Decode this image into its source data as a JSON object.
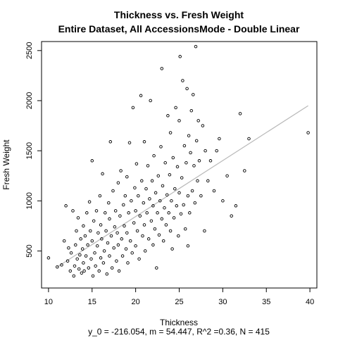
{
  "chart_data": {
    "type": "scatter",
    "title": "Thickness vs. Fresh Weight",
    "subtitle": "Entire Dataset, All AccessionsMode - Double Linear",
    "xlabel": "Thickness",
    "ylabel": "Fresh Weight",
    "footnote": "y_0 = -216.054, m = 54.447, R^2 =0.36, N = 415",
    "xlim": [
      9.2,
      40.8
    ],
    "ylim": [
      130,
      2590
    ],
    "x_ticks": [
      10,
      15,
      20,
      25,
      30,
      35,
      40
    ],
    "y_ticks": [
      500,
      1000,
      1500,
      2000,
      2500
    ],
    "grid": false,
    "fit_line": {
      "x": [
        11.0,
        39.8
      ],
      "y": [
        340,
        1950
      ],
      "color": "#b8b8b8"
    },
    "points": [
      [
        10.0,
        430
      ],
      [
        11.0,
        340
      ],
      [
        11.5,
        360
      ],
      [
        11.8,
        600
      ],
      [
        12.0,
        950
      ],
      [
        12.2,
        400
      ],
      [
        12.3,
        530
      ],
      [
        12.5,
        300
      ],
      [
        12.6,
        480
      ],
      [
        12.8,
        900
      ],
      [
        12.9,
        250
      ],
      [
        13.0,
        350
      ],
      [
        13.1,
        560
      ],
      [
        13.2,
        700
      ],
      [
        13.3,
        420
      ],
      [
        13.4,
        830
      ],
      [
        13.5,
        320
      ],
      [
        13.6,
        460
      ],
      [
        13.7,
        620
      ],
      [
        13.8,
        280
      ],
      [
        13.9,
        520
      ],
      [
        14.0,
        380
      ],
      [
        14.0,
        750
      ],
      [
        14.1,
        300
      ],
      [
        14.2,
        650
      ],
      [
        14.3,
        450
      ],
      [
        14.4,
        880
      ],
      [
        14.5,
        560
      ],
      [
        14.6,
        330
      ],
      [
        14.7,
        990
      ],
      [
        14.8,
        700
      ],
      [
        14.9,
        420
      ],
      [
        15.0,
        600
      ],
      [
        15.0,
        1400
      ],
      [
        15.1,
        250
      ],
      [
        15.2,
        800
      ],
      [
        15.3,
        480
      ],
      [
        15.4,
        350
      ],
      [
        15.5,
        900
      ],
      [
        15.6,
        550
      ],
      [
        15.7,
        680
      ],
      [
        15.8,
        300
      ],
      [
        15.9,
        1050
      ],
      [
        16.0,
        430
      ],
      [
        16.0,
        760
      ],
      [
        16.1,
        620
      ],
      [
        16.2,
        1270
      ],
      [
        16.3,
        380
      ],
      [
        16.4,
        500
      ],
      [
        16.5,
        880
      ],
      [
        16.6,
        700
      ],
      [
        16.7,
        270
      ],
      [
        16.8,
        580
      ],
      [
        16.9,
        980
      ],
      [
        17.0,
        450
      ],
      [
        17.0,
        820
      ],
      [
        17.1,
        1590
      ],
      [
        17.2,
        650
      ],
      [
        17.3,
        330
      ],
      [
        17.4,
        1100
      ],
      [
        17.5,
        530
      ],
      [
        17.6,
        740
      ],
      [
        17.7,
        900
      ],
      [
        17.8,
        400
      ],
      [
        17.9,
        680
      ],
      [
        18.0,
        1180
      ],
      [
        18.0,
        560
      ],
      [
        18.1,
        300
      ],
      [
        18.2,
        850
      ],
      [
        18.3,
        1300
      ],
      [
        18.4,
        620
      ],
      [
        18.5,
        450
      ],
      [
        18.6,
        960
      ],
      [
        18.7,
        750
      ],
      [
        18.8,
        1050
      ],
      [
        18.9,
        520
      ],
      [
        19.0,
        1240
      ],
      [
        19.0,
        680
      ],
      [
        19.1,
        380
      ],
      [
        19.2,
        880
      ],
      [
        19.3,
        1580
      ],
      [
        19.4,
        600
      ],
      [
        19.5,
        1000
      ],
      [
        19.6,
        480
      ],
      [
        19.7,
        1930
      ],
      [
        19.8,
        780
      ],
      [
        19.9,
        1130
      ],
      [
        20.0,
        900
      ],
      [
        20.0,
        550
      ],
      [
        20.1,
        1370
      ],
      [
        20.2,
        700
      ],
      [
        20.3,
        1050
      ],
      [
        20.4,
        420
      ],
      [
        20.5,
        850
      ],
      [
        20.6,
        2050
      ],
      [
        20.7,
        1200
      ],
      [
        20.8,
        650
      ],
      [
        20.9,
        980
      ],
      [
        21.0,
        1590
      ],
      [
        21.0,
        760
      ],
      [
        21.1,
        500
      ],
      [
        21.2,
        1120
      ],
      [
        21.3,
        880
      ],
      [
        21.4,
        1350
      ],
      [
        21.5,
        620
      ],
      [
        21.6,
        1020
      ],
      [
        21.7,
        2000
      ],
      [
        21.8,
        800
      ],
      [
        21.9,
        1200
      ],
      [
        22.0,
        950
      ],
      [
        22.0,
        560
      ],
      [
        22.1,
        1450
      ],
      [
        22.2,
        720
      ],
      [
        22.3,
        1080
      ],
      [
        22.4,
        330
      ],
      [
        22.5,
        880
      ],
      [
        22.6,
        1250
      ],
      [
        22.7,
        660
      ],
      [
        22.8,
        1000
      ],
      [
        22.9,
        1540
      ],
      [
        23.0,
        820
      ],
      [
        23.0,
        2320
      ],
      [
        23.1,
        1150
      ],
      [
        23.2,
        600
      ],
      [
        23.3,
        930
      ],
      [
        23.4,
        1380
      ],
      [
        23.5,
        760
      ],
      [
        23.6,
        1060
      ],
      [
        23.7,
        1850
      ],
      [
        23.8,
        880
      ],
      [
        23.9,
        1260
      ],
      [
        24.0,
        700
      ],
      [
        24.0,
        1680
      ],
      [
        24.1,
        1000
      ],
      [
        24.2,
        520
      ],
      [
        24.3,
        1430
      ],
      [
        24.4,
        830
      ],
      [
        24.5,
        1120
      ],
      [
        24.6,
        1930
      ],
      [
        24.7,
        950
      ],
      [
        24.8,
        1340
      ],
      [
        24.9,
        650
      ],
      [
        25.0,
        1800
      ],
      [
        25.0,
        1080
      ],
      [
        25.1,
        2440
      ],
      [
        25.2,
        870
      ],
      [
        25.3,
        1230
      ],
      [
        25.4,
        2200
      ],
      [
        25.5,
        960
      ],
      [
        25.6,
        1550
      ],
      [
        25.7,
        720
      ],
      [
        25.8,
        1380
      ],
      [
        25.9,
        2120
      ],
      [
        26.0,
        1050
      ],
      [
        26.0,
        550
      ],
      [
        26.1,
        1650
      ],
      [
        26.2,
        880
      ],
      [
        26.3,
        1480
      ],
      [
        26.4,
        1900
      ],
      [
        26.5,
        1100
      ],
      [
        26.6,
        2060
      ],
      [
        26.7,
        1350
      ],
      [
        26.8,
        980
      ],
      [
        26.9,
        2540
      ],
      [
        27.0,
        1600
      ],
      [
        27.1,
        1200
      ],
      [
        27.2,
        1800
      ],
      [
        27.3,
        1400
      ],
      [
        27.5,
        1050
      ],
      [
        27.7,
        1750
      ],
      [
        27.9,
        700
      ],
      [
        28.0,
        1500
      ],
      [
        28.3,
        1200
      ],
      [
        28.6,
        1400
      ],
      [
        29.0,
        1100
      ],
      [
        29.3,
        1500
      ],
      [
        29.6,
        1620
      ],
      [
        30.0,
        1000
      ],
      [
        30.5,
        1250
      ],
      [
        31.0,
        850
      ],
      [
        31.5,
        950
      ],
      [
        32.0,
        1870
      ],
      [
        32.5,
        1300
      ],
      [
        33.0,
        1620
      ],
      [
        39.8,
        1680
      ]
    ]
  }
}
